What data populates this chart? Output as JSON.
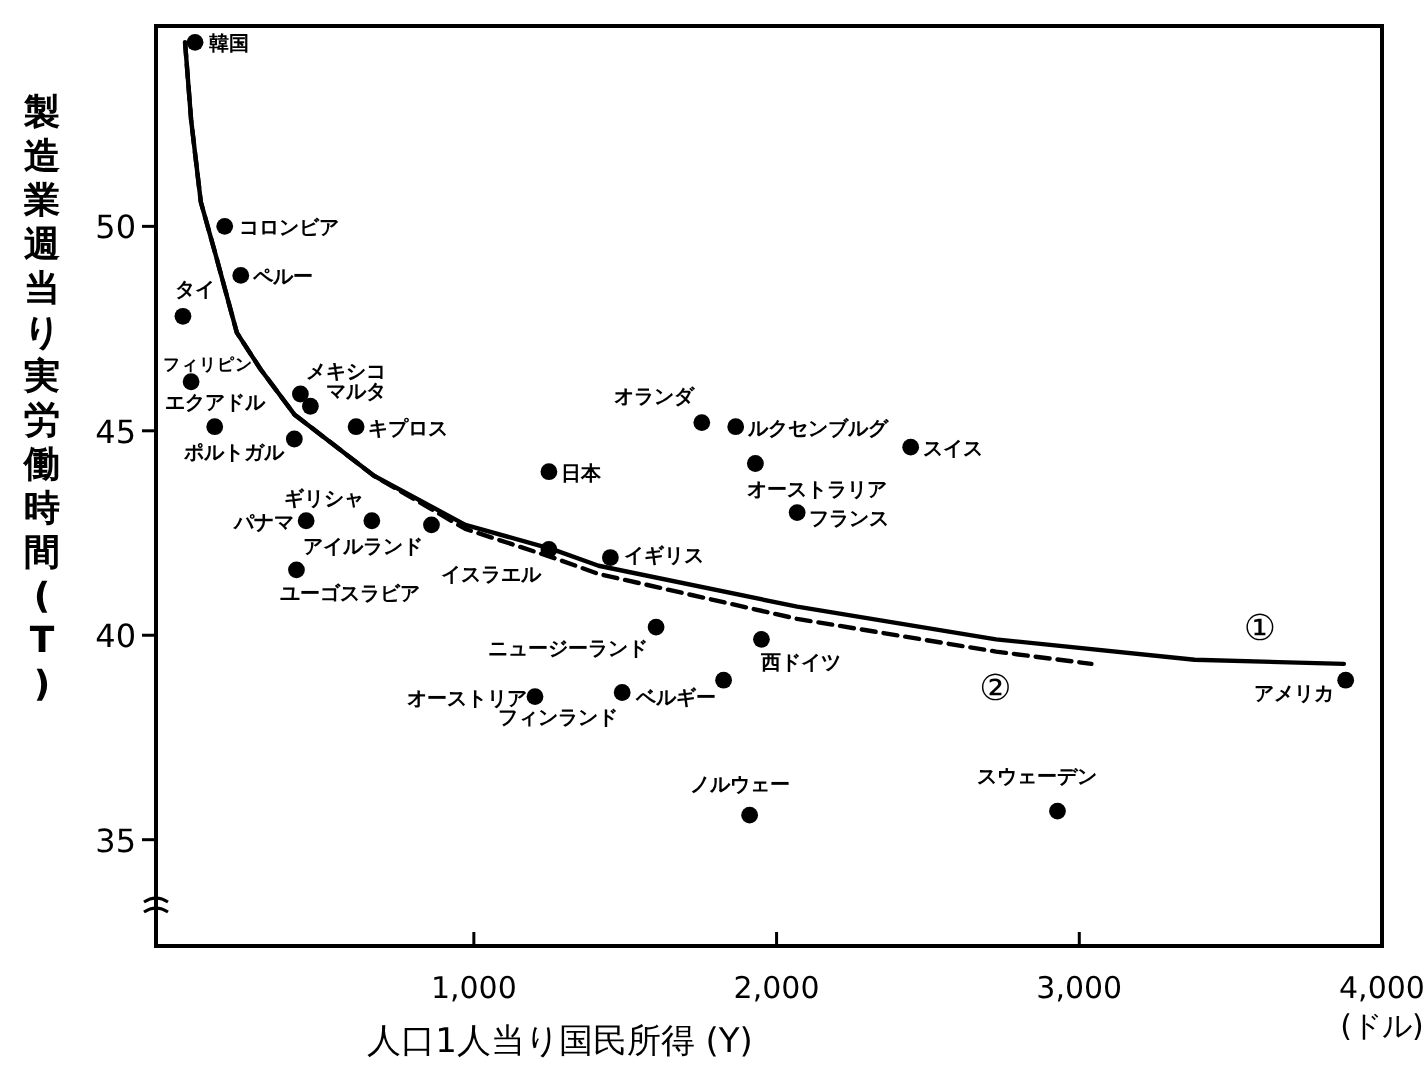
{
  "chart_data": {
    "type": "scatter",
    "xlabel": "人口1人当り国民所得 (Y)",
    "ylabel": "製造業週当り実労働時間(T)",
    "xlim": [
      -50,
      4000
    ],
    "ylim": [
      32.4,
      54.9
    ],
    "xticks": [
      {
        "value": 1000,
        "label": "1,000"
      },
      {
        "value": 2000,
        "label": "2,000"
      },
      {
        "value": 3000,
        "label": "3,000"
      },
      {
        "value": 4000,
        "label": "4,000"
      }
    ],
    "yticks": [
      35,
      40,
      45,
      50
    ],
    "marker": "circle",
    "series": [
      {
        "type": "scatter",
        "color": "#000000",
        "x": [
          79,
          177,
          230,
          39,
          66,
          144,
          407,
          427,
          460,
          611,
          1248,
          446,
          663,
          860,
          1248,
          1451,
          414,
          1602,
          1202,
          1490,
          1950,
          1825,
          1911,
          2928,
          3880,
          1753,
          1865,
          1930,
          2443,
          2068
        ],
        "values": [
          54.5,
          50.0,
          48.8,
          47.8,
          46.2,
          45.1,
          44.8,
          45.9,
          45.6,
          45.1,
          44.0,
          42.8,
          42.8,
          42.7,
          42.1,
          41.9,
          41.6,
          40.2,
          38.5,
          38.6,
          39.9,
          38.9,
          35.6,
          35.7,
          38.9,
          45.2,
          45.1,
          44.2,
          44.6,
          43.0
        ]
      },
      {
        "type": "line",
        "name": "①",
        "color": "#000000",
        "line_style": "solid",
        "marker": "none",
        "x": [
          46,
          66,
          98,
          151,
          217,
          296,
          407,
          670,
          972,
          1261,
          1412,
          2068,
          2725,
          3381,
          3874
        ],
        "values": [
          54.5,
          52.6,
          50.6,
          49.2,
          47.4,
          46.5,
          45.4,
          43.9,
          42.7,
          42.1,
          41.7,
          40.7,
          39.9,
          39.4,
          39.3
        ]
      },
      {
        "type": "line",
        "name": "②",
        "color": "#000000",
        "line_style": "dashed",
        "marker": "none",
        "x": [
          46,
          66,
          98,
          151,
          217,
          296,
          407,
          670,
          972,
          1261,
          1412,
          2068,
          2725,
          3040
        ],
        "values": [
          54.5,
          52.6,
          50.6,
          49.2,
          47.4,
          46.5,
          45.4,
          43.9,
          42.6,
          41.9,
          41.5,
          40.4,
          39.6,
          39.3
        ]
      }
    ],
    "annotations": [
      {
        "text": "韓国",
        "x": 79,
        "y": 54.5
      },
      {
        "text": "コロンビア",
        "x": 177,
        "y": 50.0
      },
      {
        "text": "ペルー",
        "x": 230,
        "y": 48.8
      },
      {
        "text": "タイ",
        "x": 39,
        "y": 47.8
      },
      {
        "text": "フィリピン",
        "x": 66,
        "y": 46.2
      },
      {
        "text": "エクアドル",
        "x": 144,
        "y": 45.1
      },
      {
        "text": "ポルトガル",
        "x": 407,
        "y": 44.8
      },
      {
        "text": "メキシコ",
        "x": 427,
        "y": 45.9
      },
      {
        "text": "マルタ",
        "x": 460,
        "y": 45.6
      },
      {
        "text": "キプロス",
        "x": 611,
        "y": 45.1
      },
      {
        "text": "日本",
        "x": 1248,
        "y": 44.0
      },
      {
        "text": "パナマ",
        "x": 446,
        "y": 42.8
      },
      {
        "text": "ギリシャ",
        "x": 663,
        "y": 42.8
      },
      {
        "text": "アイルランド",
        "x": 860,
        "y": 42.7
      },
      {
        "text": "イスラエル",
        "x": 1248,
        "y": 42.1
      },
      {
        "text": "イギリス",
        "x": 1451,
        "y": 41.9
      },
      {
        "text": "ユーゴスラビア",
        "x": 414,
        "y": 41.6
      },
      {
        "text": "ニュージーランド",
        "x": 1602,
        "y": 40.2
      },
      {
        "text": "オーストリア",
        "x": 1202,
        "y": 38.5
      },
      {
        "text": "フィンランド",
        "x": 1490,
        "y": 38.6
      },
      {
        "text": "西ドイツ",
        "x": 1950,
        "y": 39.9
      },
      {
        "text": "ベルギー",
        "x": 1825,
        "y": 38.9
      },
      {
        "text": "ノルウェー",
        "x": 1911,
        "y": 35.6
      },
      {
        "text": "スウェーデン",
        "x": 2928,
        "y": 35.7
      },
      {
        "text": "アメリカ",
        "x": 3880,
        "y": 38.9
      },
      {
        "text": "オランダ",
        "x": 1753,
        "y": 45.2
      },
      {
        "text": "ルクセンブルグ",
        "x": 1865,
        "y": 45.1
      },
      {
        "text": "オーストラリア",
        "x": 1930,
        "y": 44.2
      },
      {
        "text": "スイス",
        "x": 2443,
        "y": 44.6
      },
      {
        "text": "フランス",
        "x": 2068,
        "y": 43.0
      },
      "(ドル)"
    ]
  }
}
